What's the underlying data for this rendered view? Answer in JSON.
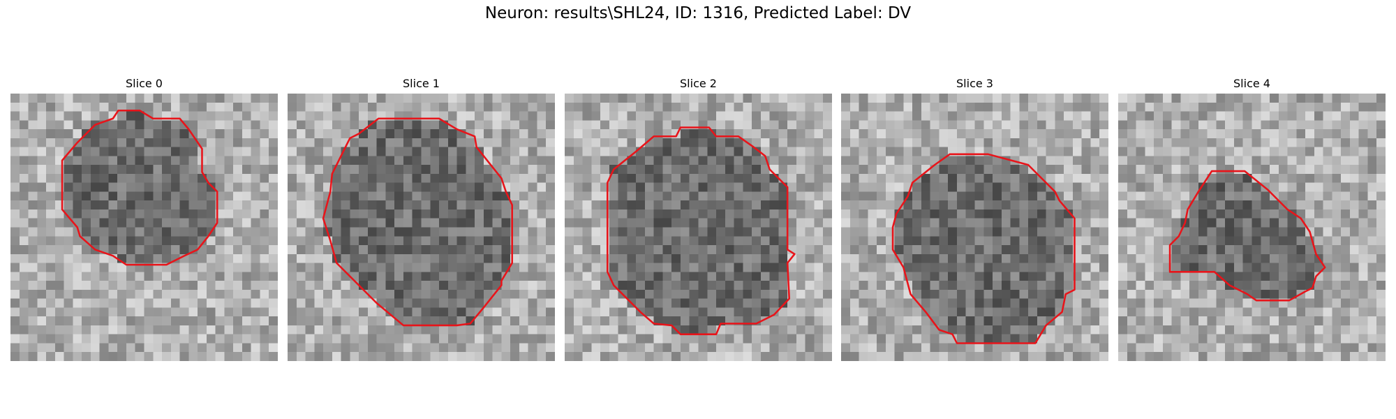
{
  "title": "Neuron: results\\SHL24, ID: 1316, Predicted Label: DV",
  "panels": [
    {
      "title": "Slice 0"
    },
    {
      "title": "Slice 1"
    },
    {
      "title": "Slice 2"
    },
    {
      "title": "Slice 3"
    },
    {
      "title": "Slice 4"
    }
  ]
}
